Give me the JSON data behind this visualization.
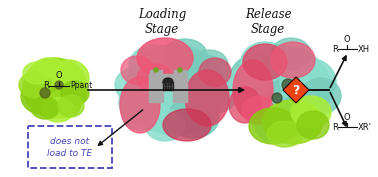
{
  "title_loading": "Loading\nStage",
  "title_release": "Release\nStage",
  "label_ppant": "Ppant",
  "label_R": "R",
  "label_does_not": "does not\nload to TE",
  "label_XH": "XH",
  "label_XR": "XR’",
  "label_question": "?",
  "bg_color": "#ffffff",
  "protein_left_green": "#99dd22",
  "protein_center_pink": "#ee5577",
  "protein_center_cyan": "#88ddcc",
  "protein_right_pink": "#ee5577",
  "protein_right_cyan": "#88ddcc",
  "protein_right_lime": "#99dd22",
  "arrow_color": "#111111",
  "diamond_color": "#ee4411",
  "dashed_box_color": "#4444bb",
  "chemical_color": "#111111",
  "title_fontsize": 8.5,
  "small_fontsize": 6.5,
  "fig_width": 3.78,
  "fig_height": 1.77
}
